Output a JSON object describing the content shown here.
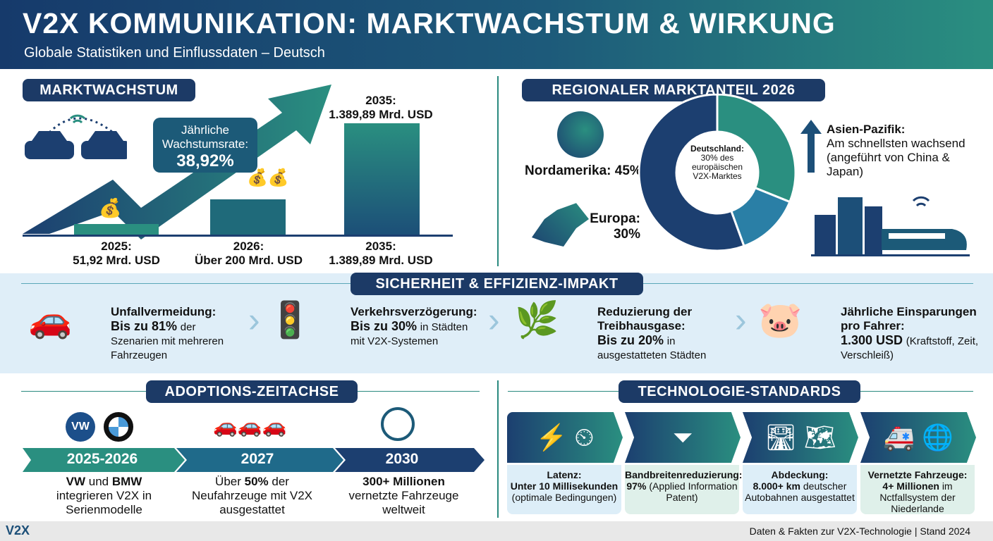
{
  "header": {
    "title": "V2X KOMMUNIKATION: MARKTWACHSTUM & WIRKUNG",
    "subtitle": "Globale Statistiken und Einflussdaten – Deutsch"
  },
  "market": {
    "heading": "MARKTWACHSTUM",
    "cagr_label": "Jährliche Wachstumsrate:",
    "cagr_value": "38,92%",
    "top_label_year": "2035:",
    "top_label_value": "1.389,89 Mrd. USD",
    "bars": [
      {
        "year": "2025:",
        "value": "51,92 Mrd. USD"
      },
      {
        "year": "2026:",
        "value": "Über 200 Mrd. USD"
      },
      {
        "year": "2035:",
        "value": "1.389,89 Mrd. USD"
      }
    ]
  },
  "regional": {
    "heading": "REGIONALER MARKTANTEIL 2026",
    "north_america": "Nordamerika: 45%",
    "europe_label": "Europa:",
    "europe_value": "30%",
    "germany_title": "Deutschland:",
    "germany_text": "30% des europäischen V2X-Marktes",
    "asia_title": "Asien-Pazifik:",
    "asia_text": "Am schnellsten wachsend (angeführt von China & Japan)",
    "colors": {
      "teal": "#2a8f80",
      "blue": "#2a7fa6",
      "navy": "#1c3f70"
    }
  },
  "impact": {
    "heading": "SICHERHEIT & EFFIZIENZ-IMPAKT",
    "items": [
      {
        "title": "Unfallvermeidung:",
        "value": "Bis zu 81%",
        "text": "der Szenarien mit mehreren Fahrzeugen",
        "icon": "car-shield-icon"
      },
      {
        "title": "Verkehrsverzögerung:",
        "value": "Bis zu 30%",
        "text": " in Städten mit V2X-Systemen",
        "icon": "clock-traffic-light-icon"
      },
      {
        "title": "Reduzierung der Treibhausgase:",
        "value": "Bis zu 20%",
        "text": " in ausgestatteten Städten",
        "icon": "co2-car-icon"
      },
      {
        "title": "Jährliche Einsparungen pro Fahrer:",
        "value": "1.300 USD",
        "text": "(Kraftstoff, Zeit, Verschleiß)",
        "icon": "piggy-bank-icon"
      }
    ]
  },
  "adoption": {
    "heading": "ADOPTIONS-ZEITACHSE",
    "steps": [
      {
        "label": "2025-2026",
        "b1": "VW",
        "t1": " und ",
        "b2": "BMW",
        "t2": "integrieren V2X in Serienmodelle"
      },
      {
        "label": "2027",
        "t0": "Über ",
        "b1": "50%",
        "t1": " der",
        "t2": "Neufahrzeuge mit V2X ausgestattet"
      },
      {
        "label": "2030",
        "b1": "300+ Millionen",
        "t2": "vernetzte Fahrzeuge weltweit"
      }
    ]
  },
  "tech": {
    "heading": "TECHNOLOGIE-STANDARDS",
    "items": [
      {
        "title": "Latenz:",
        "value": "Unter 10 Millisekunden",
        "text": "(optimale Bedingungen)"
      },
      {
        "title": "Bandbreitenreduzierung:",
        "value": "97%",
        "text": "(Applied Information Patent)"
      },
      {
        "title": "Abdeckung:",
        "value": "8.000+ km",
        "text": " deutscher Autobahnen ausgestattet"
      },
      {
        "title": "Vernetzte Fahrzeuge:",
        "value": "4+ Millionen",
        "text": " im Nctfallsystem der Niederlande"
      }
    ]
  },
  "footer": {
    "logo": "V2X",
    "text": "Daten & Fakten zur V2X-Technologie | Stand 2024"
  }
}
